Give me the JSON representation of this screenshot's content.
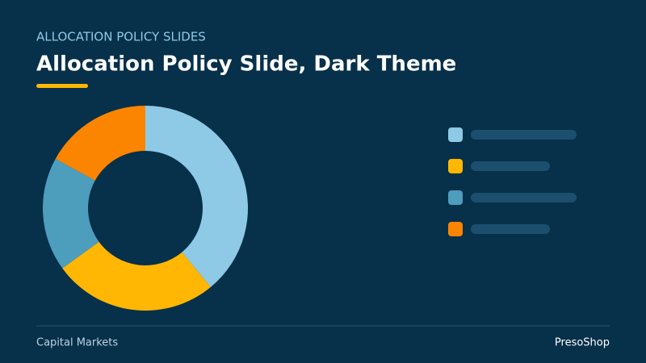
{
  "header": {
    "eyebrow": "ALLOCATION POLICY SLIDES",
    "title": "Allocation Policy Slide, Dark Theme"
  },
  "chart_data": {
    "type": "donut",
    "values": [
      39,
      26,
      18,
      17
    ],
    "colors": [
      "#8ecae6",
      "#ffb703",
      "#4d9dbd",
      "#fb8500"
    ]
  },
  "footer": {
    "left": "Capital Markets",
    "right": "PresoShop"
  }
}
